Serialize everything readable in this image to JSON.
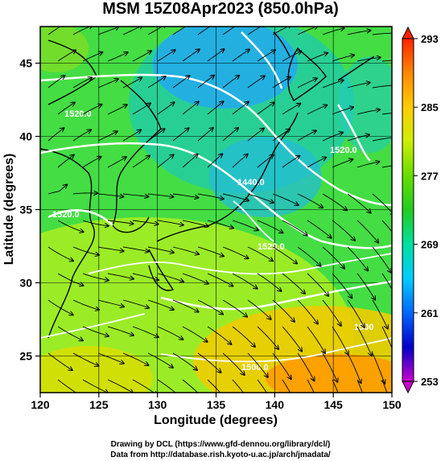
{
  "title": "MSM 15Z08Apr2023 (850.0hPa)",
  "x_axis": {
    "title": "Longitude (degrees)",
    "range": [
      120,
      150
    ],
    "ticks": [
      "120",
      "125",
      "130",
      "135",
      "140",
      "145",
      "150"
    ]
  },
  "y_axis": {
    "title": "Latitude  (degrees)",
    "range": [
      22.5,
      47.5
    ],
    "ticks": [
      "25",
      "30",
      "35",
      "40",
      "45"
    ]
  },
  "colorbar": {
    "ticks": [
      "253",
      "261",
      "269",
      "277",
      "285",
      "293"
    ],
    "range": [
      253,
      293
    ],
    "colors": [
      "#cc00cc",
      "#0000cc",
      "#0066ff",
      "#00ccff",
      "#00e0a0",
      "#22cc22",
      "#66dd00",
      "#ccee00",
      "#ffcc00",
      "#ff8800",
      "#ff2200"
    ]
  },
  "contour_labels": [
    "1520.0",
    "1520.0",
    "1440.0",
    "1500.0",
    "1520.0",
    "1520.0",
    "1500"
  ],
  "credits": {
    "line1": "Drawing by DCL (https://www.gfd-dennou.org/library/dcl/)",
    "line2": "Data from http://database.rish.kyoto-u.ac.jp/arch/jmadata/"
  }
}
